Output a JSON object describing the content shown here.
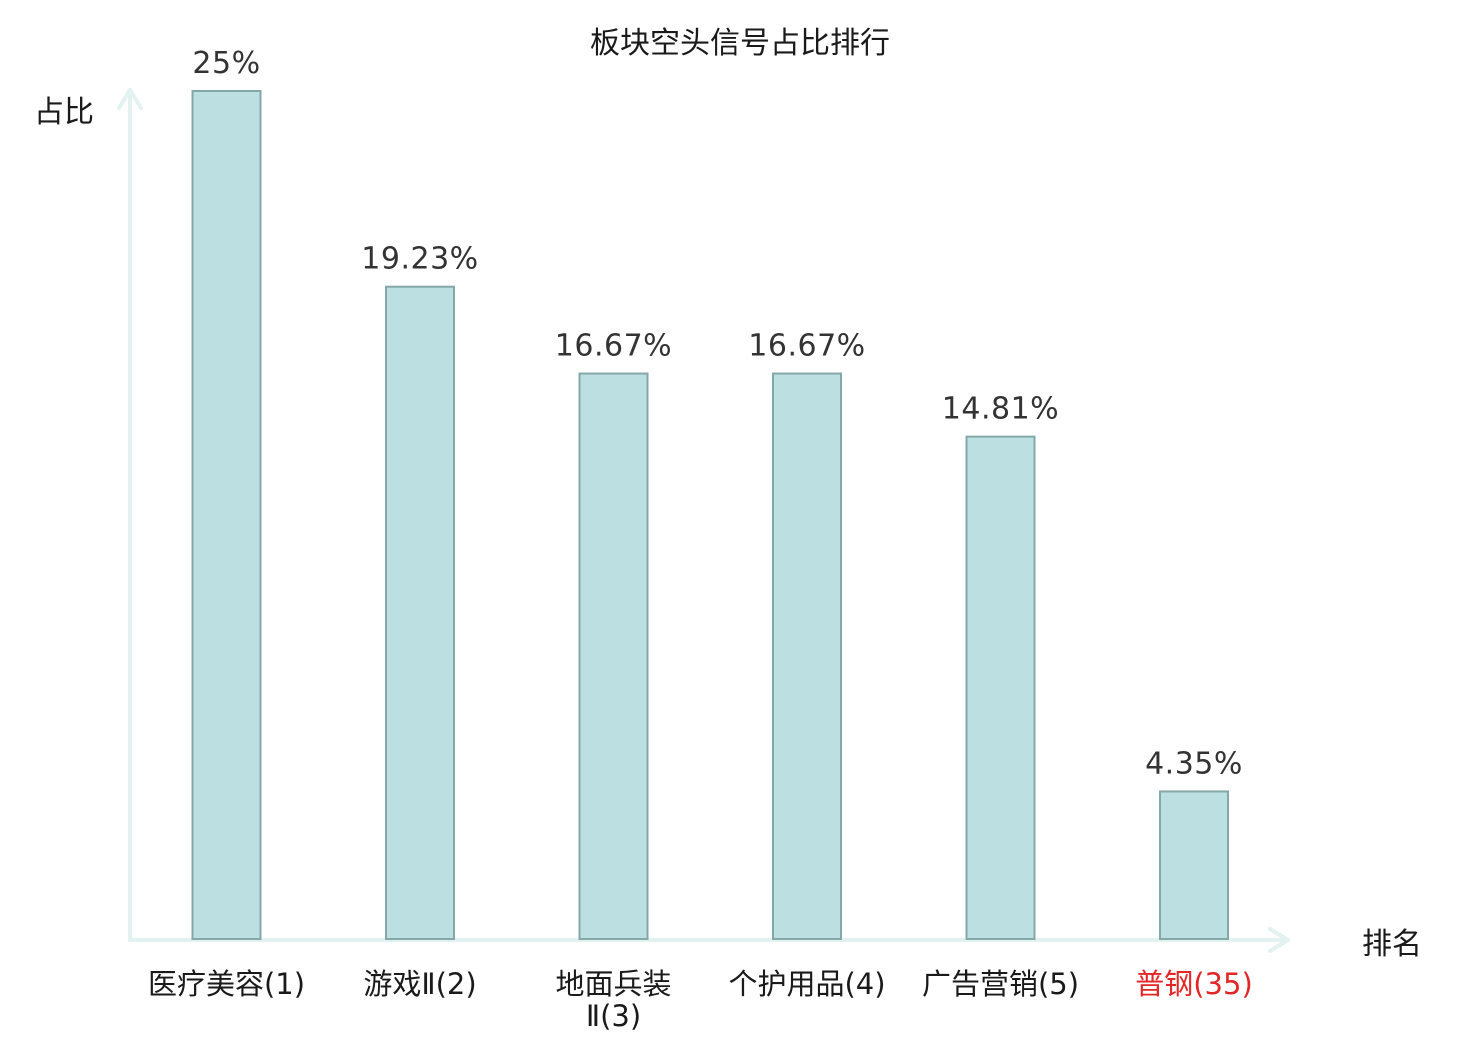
{
  "chart_data": {
    "type": "bar",
    "title": "板块空头信号占比排行",
    "ylabel": "占比",
    "xlabel": "排名",
    "categories": [
      [
        "医疗美容(1)"
      ],
      [
        "游戏Ⅱ(2)"
      ],
      [
        "地面兵装",
        "Ⅱ(3)"
      ],
      [
        "个护用品(4)"
      ],
      [
        "广告营销(5)"
      ],
      [
        "普钢(35)"
      ]
    ],
    "values": [
      25,
      19.23,
      16.67,
      16.67,
      14.81,
      4.35
    ],
    "value_labels": [
      "25%",
      "19.23%",
      "16.67%",
      "16.67%",
      "14.81%",
      "4.35%"
    ],
    "ylim": [
      0,
      25
    ],
    "grid": false,
    "highlight_index": 5,
    "colors": {
      "bar_fill": "#bce0e2",
      "bar_stroke": "#84a8aa",
      "axis": "#e2f2f0",
      "highlight_label": "#e32626"
    }
  }
}
